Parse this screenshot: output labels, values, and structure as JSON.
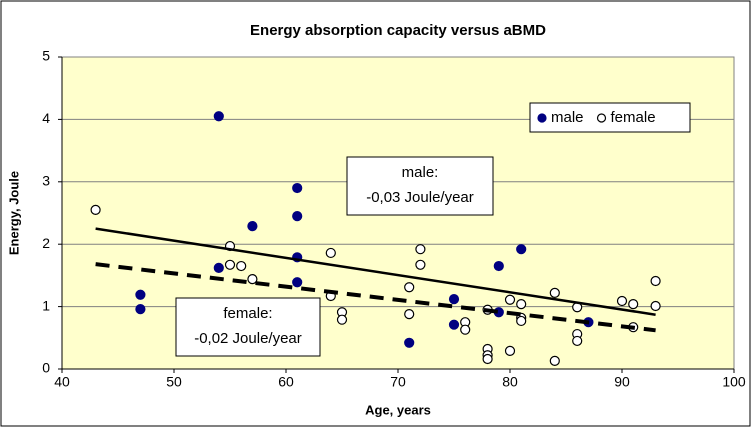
{
  "chart_data": {
    "type": "scatter",
    "title": "Energy absorption capacity versus aBMD",
    "x_label": "Age, years",
    "y_label": "Energy, Joule",
    "xlim": [
      40,
      100
    ],
    "xticks": [
      40,
      50,
      60,
      70,
      80,
      90,
      100
    ],
    "ylim": [
      0,
      5
    ],
    "yticks": [
      0,
      1,
      2,
      3,
      4,
      5
    ],
    "grid": true,
    "legend": "upper right",
    "series": [
      {
        "name": "male",
        "color": "#000080",
        "marker": "filled",
        "x": [
          47,
          47,
          54,
          54,
          57,
          61,
          61,
          61,
          61,
          71,
          75,
          75,
          79,
          79,
          81,
          87
        ],
        "values": [
          1.19,
          0.96,
          4.05,
          1.62,
          2.29,
          2.9,
          2.45,
          1.79,
          1.39,
          0.42,
          1.12,
          0.71,
          1.65,
          0.91,
          1.92,
          0.75
        ]
      },
      {
        "name": "female",
        "color": "#000000",
        "marker": "open",
        "x": [
          43,
          55,
          55,
          56,
          57,
          64,
          64,
          65,
          65,
          71,
          71,
          72,
          72,
          76,
          76,
          78,
          78,
          78,
          78,
          80,
          80,
          81,
          81,
          81,
          84,
          84,
          86,
          86,
          86,
          90,
          91,
          91,
          93,
          93
        ],
        "values": [
          2.55,
          1.97,
          1.67,
          1.65,
          1.44,
          1.86,
          1.17,
          0.91,
          0.79,
          1.31,
          0.88,
          1.92,
          1.67,
          0.75,
          0.63,
          0.95,
          0.32,
          0.22,
          0.16,
          1.11,
          0.29,
          1.04,
          0.82,
          0.77,
          1.22,
          0.13,
          0.99,
          0.56,
          0.45,
          1.09,
          1.04,
          0.67,
          1.41,
          1.01
        ]
      }
    ],
    "trendlines": [
      {
        "style": "solid",
        "color": "#000000",
        "x": [
          43,
          93
        ],
        "values": [
          2.25,
          0.87
        ]
      },
      {
        "style": "dashed",
        "color": "#000000",
        "x": [
          43,
          93
        ],
        "values": [
          1.68,
          0.62
        ]
      }
    ],
    "annotations": [
      {
        "lines": [
          "male:",
          "-0,03 Joule/year"
        ]
      },
      {
        "lines": [
          "female:",
          "-0,02 Joule/year"
        ]
      }
    ]
  }
}
